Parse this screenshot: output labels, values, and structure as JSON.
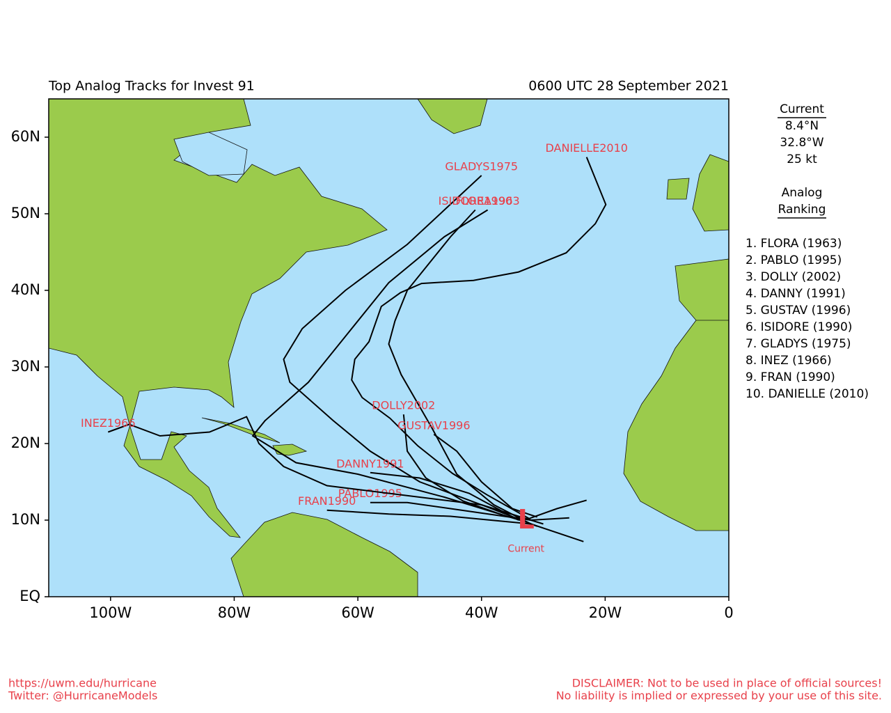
{
  "header": {
    "title": "Top Analog Tracks for Invest 91",
    "date": "0600 UTC 28 September 2021"
  },
  "map": {
    "xlim": [
      -110,
      0
    ],
    "ylim": [
      0,
      65
    ],
    "xticks": [
      {
        "value": -100,
        "label": "100W"
      },
      {
        "value": -80,
        "label": "80W"
      },
      {
        "value": -60,
        "label": "60W"
      },
      {
        "value": -40,
        "label": "40W"
      },
      {
        "value": -20,
        "label": "20W"
      },
      0
    ],
    "yticks": [
      {
        "value": 0,
        "label": "EQ"
      },
      {
        "value": 10,
        "label": "10N"
      },
      {
        "value": 20,
        "label": "20N"
      },
      {
        "value": 30,
        "label": "30N"
      },
      {
        "value": 40,
        "label": "40N"
      },
      {
        "value": 50,
        "label": "50N"
      },
      {
        "value": 60,
        "label": "60N"
      }
    ],
    "current": {
      "lon": -32.8,
      "lat": 8.4,
      "marker": "L",
      "label": "Current"
    },
    "tracks": [
      {
        "name": "DANIELLE2010",
        "lon": [
          -23.0,
          -27.8,
          -32.3,
          -39.1,
          -44.7,
          -50.3,
          -54.8,
          -59.3,
          -61.0,
          -60.5,
          -58.2,
          -56.2,
          -53.1,
          -49.7,
          -41.3,
          -34.0,
          -26.3,
          -21.6,
          -19.9,
          -23.0
        ],
        "lat": [
          12.6,
          11.5,
          10.2,
          13.3,
          16.1,
          19.7,
          23.3,
          26.0,
          28.3,
          31.0,
          33.3,
          37.9,
          39.7,
          40.9,
          41.3,
          42.4,
          44.9,
          48.7,
          51.2,
          57.4
        ]
      },
      {
        "name": "GLADYS1975",
        "lon": [
          -30,
          -40,
          -50,
          -58,
          -64,
          -71,
          -72,
          -69,
          -62,
          -52,
          -40
        ],
        "lat": [
          9.5,
          12,
          15,
          19,
          23,
          28,
          31,
          35,
          40,
          46,
          55
        ]
      },
      {
        "name": "FLORA1963",
        "lon": [
          -33,
          -46,
          -60,
          -70,
          -75,
          -77,
          -75,
          -68,
          -62,
          -55,
          -46,
          -39
        ],
        "lat": [
          9.8,
          13,
          16,
          17.5,
          20,
          21,
          23,
          28,
          34,
          41,
          47,
          50.5
        ]
      },
      {
        "name": "ISIDORE1990",
        "lon": [
          -32,
          -38,
          -44,
          -48,
          -53,
          -55,
          -54,
          -52,
          -50,
          -45,
          -41
        ],
        "lat": [
          9.5,
          12,
          16,
          22,
          29,
          33,
          36,
          40,
          42,
          47,
          50.5
        ]
      },
      {
        "name": "DOLLY2002",
        "lon": [
          -32,
          -36,
          -43,
          -49,
          -52,
          -52.6
        ],
        "lat": [
          10,
          10.5,
          12.5,
          15.5,
          19,
          23.8
        ]
      },
      {
        "name": "GUSTAV1996",
        "lon": [
          -31,
          -35,
          -40,
          -44,
          -47.7
        ],
        "lat": [
          10.4,
          11.5,
          15,
          19,
          21.2
        ]
      },
      {
        "name": "DANNY1991",
        "lon": [
          -34,
          -42,
          -50,
          -58
        ],
        "lat": [
          10,
          13.5,
          15.5,
          16.2
        ]
      },
      {
        "name": "PABLO1995",
        "lon": [
          -25.8,
          -32,
          -45,
          -52,
          -58
        ],
        "lat": [
          10.3,
          10,
          11.5,
          12.3,
          12.3
        ]
      },
      {
        "name": "FRAN1990",
        "lon": [
          -23.5,
          -32,
          -45,
          -55,
          -65
        ],
        "lat": [
          7.2,
          9.5,
          10.5,
          10.8,
          11.3
        ]
      },
      {
        "name": "INEZ1966",
        "lon": [
          -31,
          -40,
          -55,
          -65,
          -72,
          -76,
          -78,
          -84,
          -92,
          -97,
          -100.4
        ],
        "lat": [
          9.2,
          12,
          13.5,
          14.5,
          17,
          20,
          23.5,
          21.5,
          21,
          22.5,
          21.5
        ]
      }
    ]
  },
  "panel": {
    "current_heading": "Current",
    "lat": "8.4°N",
    "lon": "32.8°W",
    "wind": "25 kt",
    "ranking_heading_1": "Analog",
    "ranking_heading_2": "Ranking",
    "ranking": [
      "1.  FLORA (1963)",
      "2.  PABLO (1995)",
      "3.  DOLLY (2002)",
      "4.  DANNY (1991)",
      "5.  GUSTAV (1996)",
      "6.  ISIDORE (1990)",
      "7.  GLADYS (1975)",
      "8.  INEZ (1966)",
      "9.  FRAN (1990)",
      "10. DANIELLE (2010)"
    ]
  },
  "footer": {
    "url": "https://uwm.edu/hurricane",
    "twitter": "Twitter: @HurricaneModels",
    "disclaimer_1": "DISCLAIMER: Not to be used in place of official sources!",
    "disclaimer_2": "No liability is implied or expressed by your use of this site."
  }
}
